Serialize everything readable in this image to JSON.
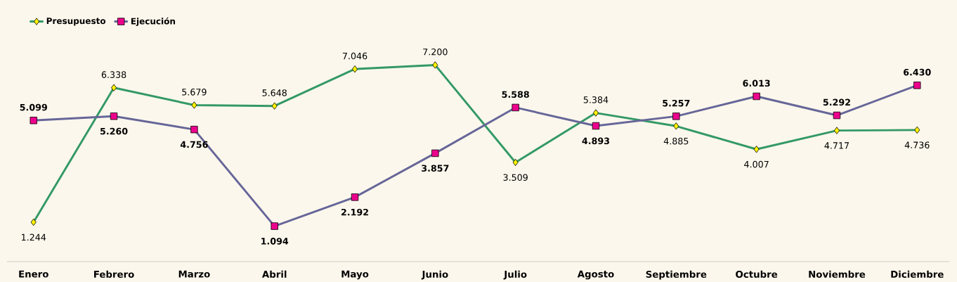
{
  "chart_data": {
    "type": "line",
    "categories": [
      "Enero",
      "Febrero",
      "Marzo",
      "Abril",
      "Mayo",
      "Junio",
      "Julio",
      "Agosto",
      "Septiembre",
      "Octubre",
      "Noviembre",
      "Diciembre"
    ],
    "series": [
      {
        "name": "Presupuesto",
        "color": "#339966",
        "marker": "diamond",
        "values": [
          1.244,
          6.338,
          5.679,
          5.648,
          7.046,
          7.2,
          3.509,
          5.384,
          4.885,
          4.007,
          4.717,
          4.736
        ],
        "value_labels": [
          "1.244",
          "6.338",
          "5.679",
          "5.648",
          "7.046",
          "7.200",
          "3.509",
          "5.384",
          "4.885",
          "4.007",
          "4.717",
          "4.736"
        ]
      },
      {
        "name": "Ejecución",
        "color": "#666699",
        "marker": "square",
        "values": [
          5.099,
          5.26,
          4.756,
          1.094,
          2.192,
          3.857,
          5.588,
          4.893,
          5.257,
          6.013,
          5.292,
          6.43
        ],
        "value_labels": [
          "5.099",
          "5.260",
          "4.756",
          "1.094",
          "2.192",
          "3.857",
          "5.588",
          "4.893",
          "5.257",
          "6.013",
          "5.292",
          "6.430"
        ]
      }
    ],
    "tick_labels": "x",
    "legend": "top left",
    "grid": false,
    "line_style": "solid"
  }
}
